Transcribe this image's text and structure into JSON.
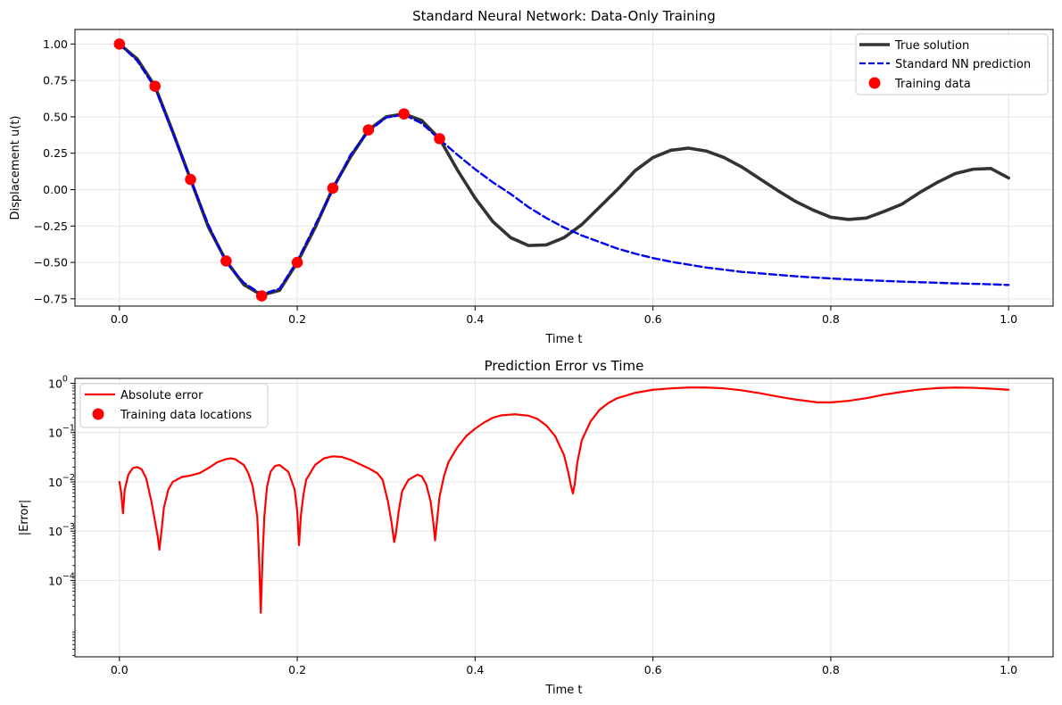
{
  "chart_data": [
    {
      "type": "line",
      "title": "Standard Neural Network: Data-Only Training",
      "xlabel": "Time t",
      "ylabel": "Displacement u(t)",
      "xlim": [
        -0.05,
        1.05
      ],
      "ylim": [
        -0.8,
        1.1
      ],
      "xticks": [
        0.0,
        0.2,
        0.4,
        0.6,
        0.8,
        1.0
      ],
      "xtick_labels": [
        "0.0",
        "0.2",
        "0.4",
        "0.6",
        "0.8",
        "1.0"
      ],
      "yticks": [
        -0.75,
        -0.5,
        -0.25,
        0.0,
        0.25,
        0.5,
        0.75,
        1.0
      ],
      "ytick_labels": [
        "−0.75",
        "−0.50",
        "−0.25",
        "0.00",
        "0.25",
        "0.50",
        "0.75",
        "1.00"
      ],
      "grid": true,
      "legend_position": "top-right",
      "series": [
        {
          "name": "True solution",
          "style": "solid",
          "color": "#333333",
          "x": [
            0.0,
            0.02,
            0.04,
            0.06,
            0.08,
            0.1,
            0.12,
            0.14,
            0.16,
            0.18,
            0.2,
            0.22,
            0.24,
            0.26,
            0.28,
            0.3,
            0.32,
            0.34,
            0.36,
            0.38,
            0.4,
            0.42,
            0.44,
            0.46,
            0.48,
            0.5,
            0.52,
            0.54,
            0.56,
            0.58,
            0.6,
            0.62,
            0.64,
            0.66,
            0.68,
            0.7,
            0.72,
            0.74,
            0.76,
            0.78,
            0.8,
            0.82,
            0.84,
            0.86,
            0.88,
            0.9,
            0.92,
            0.94,
            0.96,
            0.98,
            1.0
          ],
          "y": [
            1.0,
            0.898,
            0.71,
            0.397,
            0.07,
            -0.256,
            -0.49,
            -0.653,
            -0.725,
            -0.692,
            -0.5,
            -0.262,
            0.01,
            0.225,
            0.41,
            0.5,
            0.52,
            0.475,
            0.35,
            0.136,
            -0.058,
            -0.22,
            -0.33,
            -0.384,
            -0.38,
            -0.33,
            -0.24,
            -0.12,
            0.0,
            0.13,
            0.22,
            0.27,
            0.285,
            0.265,
            0.22,
            0.155,
            0.075,
            -0.005,
            -0.08,
            -0.14,
            -0.19,
            -0.205,
            -0.195,
            -0.15,
            -0.1,
            -0.02,
            0.05,
            0.11,
            0.14,
            0.145,
            0.08
          ]
        },
        {
          "name": "Standard NN prediction",
          "style": "dashed",
          "color": "#0000ee",
          "x": [
            0.0,
            0.02,
            0.04,
            0.06,
            0.08,
            0.1,
            0.12,
            0.14,
            0.16,
            0.18,
            0.2,
            0.22,
            0.24,
            0.26,
            0.28,
            0.3,
            0.32,
            0.34,
            0.36,
            0.38,
            0.4,
            0.42,
            0.44,
            0.46,
            0.48,
            0.5,
            0.52,
            0.54,
            0.56,
            0.58,
            0.6,
            0.62,
            0.64,
            0.66,
            0.68,
            0.7,
            0.72,
            0.74,
            0.76,
            0.78,
            0.8,
            0.82,
            0.84,
            0.86,
            0.88,
            0.9,
            0.92,
            0.94,
            0.96,
            0.98,
            1.0
          ],
          "y": [
            1.0,
            0.885,
            0.7,
            0.39,
            0.07,
            -0.24,
            -0.5,
            -0.64,
            -0.72,
            -0.68,
            -0.49,
            -0.245,
            0.0,
            0.24,
            0.4,
            0.495,
            0.515,
            0.455,
            0.345,
            0.24,
            0.14,
            0.05,
            -0.03,
            -0.12,
            -0.195,
            -0.26,
            -0.315,
            -0.36,
            -0.405,
            -0.44,
            -0.47,
            -0.495,
            -0.515,
            -0.535,
            -0.55,
            -0.565,
            -0.575,
            -0.585,
            -0.595,
            -0.603,
            -0.61,
            -0.617,
            -0.622,
            -0.627,
            -0.632,
            -0.636,
            -0.64,
            -0.644,
            -0.647,
            -0.65,
            -0.655
          ]
        }
      ],
      "scatter": {
        "name": "Training data",
        "color": "#ff0000",
        "x": [
          0.0,
          0.04,
          0.08,
          0.12,
          0.16,
          0.2,
          0.24,
          0.28,
          0.32,
          0.36
        ],
        "y": [
          1.0,
          0.71,
          0.07,
          -0.49,
          -0.73,
          -0.5,
          0.01,
          0.41,
          0.52,
          0.35
        ]
      }
    },
    {
      "type": "line",
      "title": "Prediction Error vs Time",
      "xlabel": "Time t",
      "ylabel": "|Error|",
      "log_y": true,
      "xlim": [
        -0.05,
        1.05
      ],
      "ylim_log10": [
        -5.55,
        0.1
      ],
      "xticks": [
        0.0,
        0.2,
        0.4,
        0.6,
        0.8,
        1.0
      ],
      "xtick_labels": [
        "0.0",
        "0.2",
        "0.4",
        "0.6",
        "0.8",
        "1.0"
      ],
      "yticks_log10": [
        -4,
        -3,
        -2,
        -1,
        0
      ],
      "ytick_labels": [
        "10",
        "10",
        "10",
        "10",
        "10"
      ],
      "ytick_exponents": [
        "−4",
        "−3",
        "−2",
        "−1",
        "0"
      ],
      "grid": true,
      "legend_position": "top-left",
      "series": [
        {
          "name": "Absolute error",
          "color": "#ff0000",
          "x": [
            0.0,
            0.002,
            0.004,
            0.006,
            0.01,
            0.015,
            0.02,
            0.025,
            0.03,
            0.036,
            0.04,
            0.043,
            0.045,
            0.047,
            0.05,
            0.055,
            0.06,
            0.07,
            0.08,
            0.09,
            0.1,
            0.11,
            0.12,
            0.125,
            0.13,
            0.14,
            0.145,
            0.15,
            0.155,
            0.157,
            0.159,
            0.161,
            0.163,
            0.166,
            0.17,
            0.175,
            0.18,
            0.19,
            0.197,
            0.2,
            0.202,
            0.204,
            0.207,
            0.21,
            0.22,
            0.23,
            0.24,
            0.25,
            0.26,
            0.27,
            0.28,
            0.29,
            0.296,
            0.302,
            0.306,
            0.309,
            0.311,
            0.314,
            0.318,
            0.325,
            0.335,
            0.34,
            0.345,
            0.35,
            0.353,
            0.355,
            0.357,
            0.36,
            0.365,
            0.37,
            0.38,
            0.39,
            0.4,
            0.41,
            0.42,
            0.43,
            0.445,
            0.46,
            0.47,
            0.48,
            0.49,
            0.5,
            0.505,
            0.508,
            0.51,
            0.512,
            0.515,
            0.52,
            0.53,
            0.54,
            0.55,
            0.56,
            0.58,
            0.6,
            0.62,
            0.64,
            0.66,
            0.68,
            0.7,
            0.72,
            0.74,
            0.76,
            0.785,
            0.8,
            0.82,
            0.84,
            0.86,
            0.88,
            0.9,
            0.92,
            0.94,
            0.96,
            0.98,
            1.0
          ],
          "y": [
            0.01,
            0.006,
            0.0023,
            0.007,
            0.014,
            0.019,
            0.02,
            0.018,
            0.012,
            0.004,
            0.0016,
            0.0008,
            0.00042,
            0.0009,
            0.003,
            0.007,
            0.01,
            0.0125,
            0.0135,
            0.015,
            0.019,
            0.025,
            0.029,
            0.03,
            0.029,
            0.022,
            0.015,
            0.008,
            0.002,
            0.0003,
            2.2e-05,
            0.0003,
            0.002,
            0.008,
            0.016,
            0.021,
            0.022,
            0.016,
            0.007,
            0.0025,
            0.00052,
            0.002,
            0.0055,
            0.011,
            0.022,
            0.03,
            0.033,
            0.032,
            0.028,
            0.023,
            0.019,
            0.015,
            0.011,
            0.004,
            0.0015,
            0.0006,
            0.0009,
            0.0025,
            0.0065,
            0.011,
            0.014,
            0.013,
            0.009,
            0.004,
            0.0015,
            0.00065,
            0.0015,
            0.005,
            0.013,
            0.025,
            0.05,
            0.085,
            0.12,
            0.16,
            0.2,
            0.225,
            0.235,
            0.22,
            0.19,
            0.14,
            0.085,
            0.035,
            0.015,
            0.008,
            0.0058,
            0.009,
            0.025,
            0.07,
            0.17,
            0.29,
            0.4,
            0.5,
            0.64,
            0.74,
            0.79,
            0.82,
            0.82,
            0.79,
            0.72,
            0.63,
            0.54,
            0.47,
            0.41,
            0.41,
            0.44,
            0.5,
            0.59,
            0.67,
            0.75,
            0.8,
            0.82,
            0.81,
            0.78,
            0.74
          ]
        }
      ],
      "scatter": {
        "name": "Training data locations",
        "color": "#ff0000",
        "x": [],
        "y": []
      }
    }
  ]
}
